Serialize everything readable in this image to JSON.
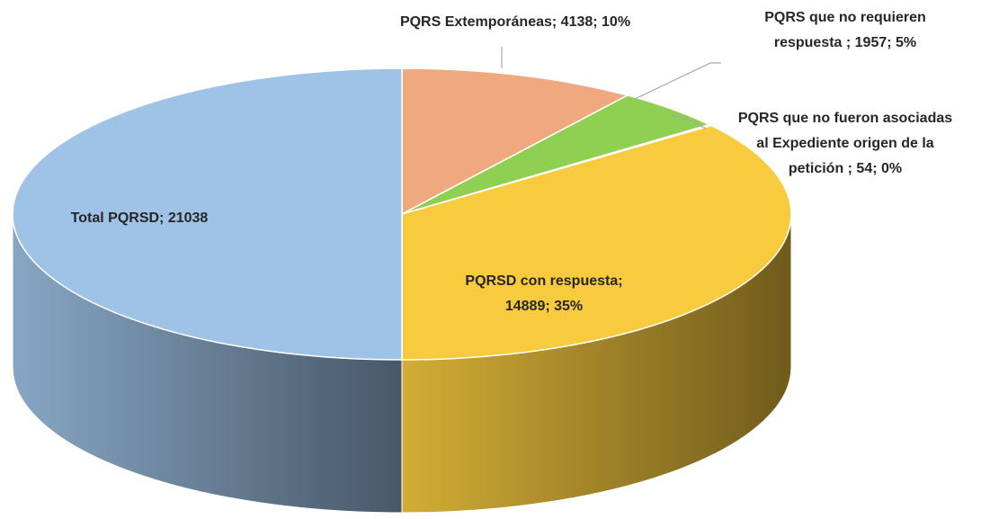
{
  "chart_data": {
    "type": "pie",
    "values": [
      4138,
      1957,
      54,
      14889,
      21038
    ],
    "value_labels": [
      "PQRS Extemporáneas; 4138; 10%",
      "PQRS que no requieren respuesta ; 1957; 5%",
      "PQRS que no fueron asociadas al Expediente origen de la petición ; 54; 0%",
      "PQRSD con respuesta; 14889; 35%",
      "Total PQRSD; 21038"
    ],
    "colors": [
      "#f0a97f",
      "#8fcf52",
      "#9dc3e6",
      "#f8cb3e",
      "#9fc3e6"
    ]
  }
}
